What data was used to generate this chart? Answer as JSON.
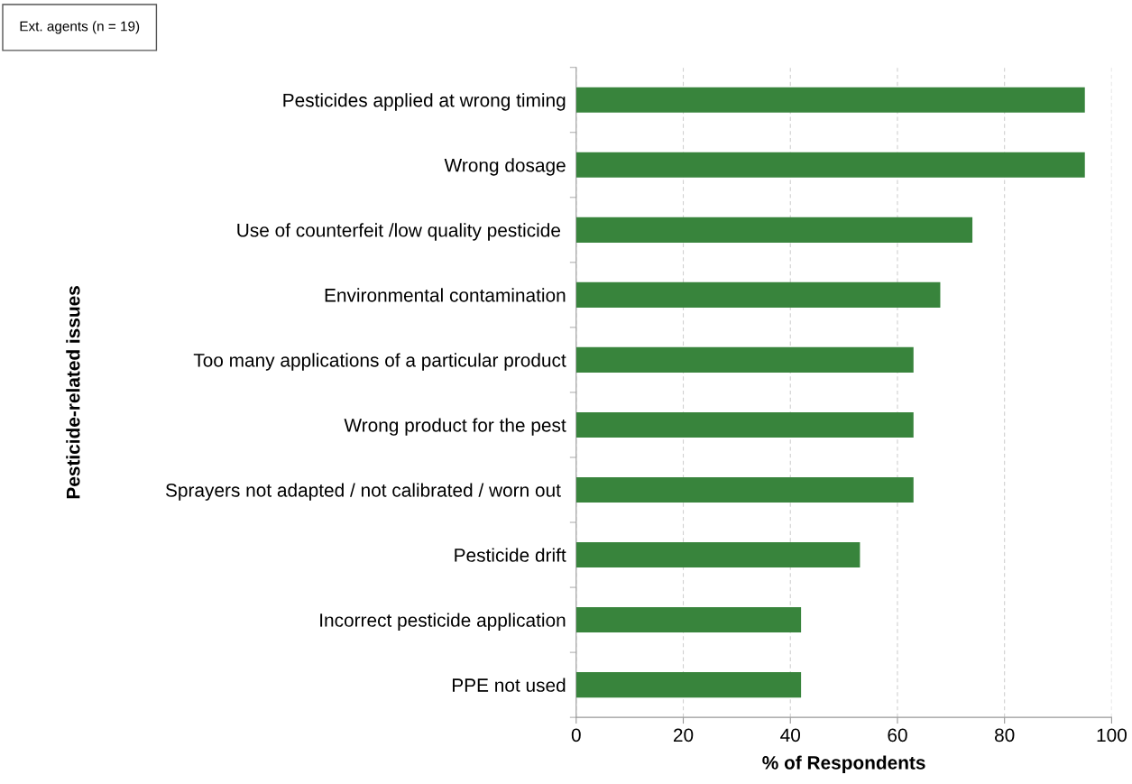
{
  "chart_data": {
    "type": "bar",
    "orientation": "horizontal",
    "xlabel": "% of Respondents",
    "ylabel": "Pesticide-related issues",
    "annotations": [
      "Ext. agents (n = 19)"
    ],
    "categories": [
      "Pesticides applied at wrong timing",
      "Wrong dosage",
      "Use of counterfeit /low quality pesticide ",
      "Environmental contamination",
      "Too many applications of a particular product",
      "Wrong product for the pest",
      "Sprayers not adapted / not calibrated / worn out ",
      "Pesticide drift",
      "Incorrect pesticide application",
      "PPE not used"
    ],
    "values": [
      95,
      95,
      74,
      68,
      63,
      63,
      63,
      53,
      42,
      42
    ],
    "color": "#38843c",
    "xlim": [
      0,
      100
    ],
    "xticks": [
      0,
      20,
      40,
      60,
      80,
      100
    ],
    "grid": "x"
  }
}
